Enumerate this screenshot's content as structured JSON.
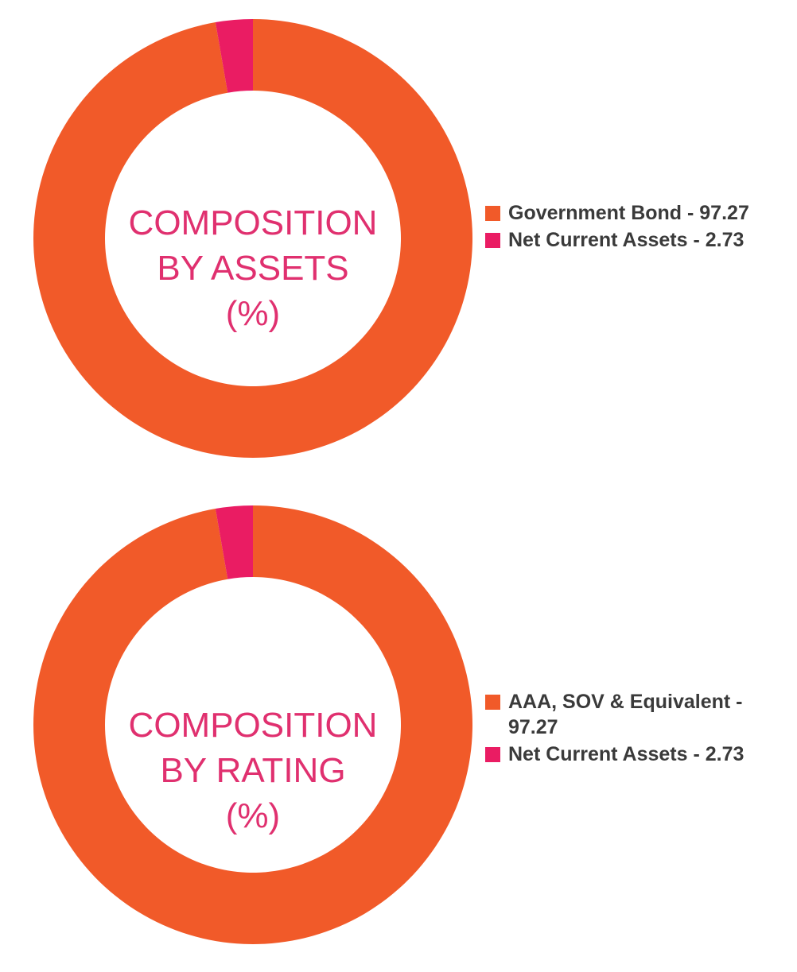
{
  "colors": {
    "orange": "#f15a29",
    "pink": "#ea1c63",
    "label": "#e0306f",
    "text": "#3a3a3a"
  },
  "chart_data": [
    {
      "type": "pie",
      "donut": true,
      "center_label": [
        "COMPOSITION",
        "BY ASSETS",
        "(%)"
      ],
      "categories": [
        "Government Bond",
        "Net Current Assets"
      ],
      "values": [
        97.27,
        2.73
      ],
      "colors": [
        "#f15a29",
        "#ea1c63"
      ],
      "legend": [
        "Government Bond - 97.27",
        "Net Current Assets - 2.73"
      ],
      "legend_position": "right"
    },
    {
      "type": "pie",
      "donut": true,
      "center_label": [
        "COMPOSITION",
        "BY RATING",
        "(%)"
      ],
      "categories": [
        "AAA, SOV & Equivalent",
        "Net Current Assets"
      ],
      "values": [
        97.27,
        2.73
      ],
      "colors": [
        "#f15a29",
        "#ea1c63"
      ],
      "legend": [
        "AAA, SOV & Equivalent - 97.27",
        "Net Current Assets - 2.73"
      ],
      "legend_position": "right"
    }
  ]
}
